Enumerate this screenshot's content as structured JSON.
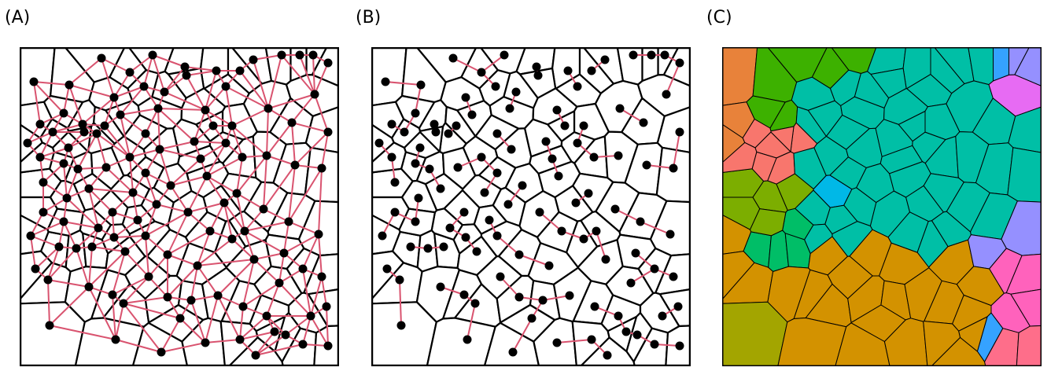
{
  "panels": [
    {
      "id": "A",
      "label": "(A)",
      "mode": "delaunay"
    },
    {
      "id": "B",
      "label": "(B)",
      "mode": "nearest"
    },
    {
      "id": "C",
      "label": "(C)",
      "mode": "clusters"
    }
  ],
  "colors": {
    "edge": "#d9536f",
    "point": "#000000",
    "cell_border": "#000000",
    "cluster_orange_top": "#e8823a",
    "cluster_green": "#3db100",
    "cluster_salmon": "#f8766d",
    "cluster_olive": "#7cae00",
    "cluster_teal": "#00bfa6",
    "cluster_cyan": "#00b8e7",
    "cluster_green2": "#00be67",
    "cluster_mustard": "#d39200",
    "cluster_olive_dark": "#a3a500",
    "cluster_lavender": "#9590ff",
    "cluster_magenta": "#e76bf3",
    "cluster_pink": "#ff62bc",
    "cluster_blue": "#35a2ff",
    "cluster_rose": "#fe6e8a"
  }
}
